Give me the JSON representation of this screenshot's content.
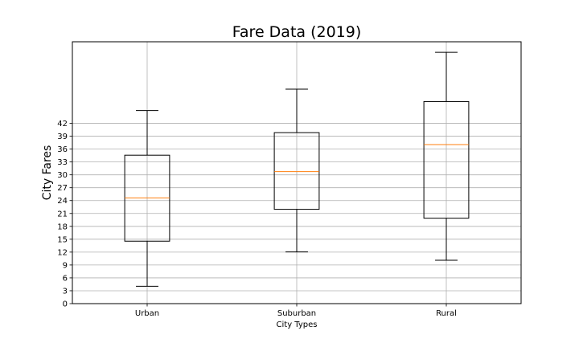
{
  "chart_data": {
    "type": "box",
    "title": "Fare Data (2019)",
    "xlabel": "City Types",
    "ylabel": "City Fares",
    "categories": [
      "Urban",
      "Suburban",
      "Rural"
    ],
    "boxes": [
      {
        "name": "Urban",
        "whisker_low": 4.05,
        "q1": 14.55,
        "median": 24.64,
        "q3": 34.58,
        "whisker_high": 44.97
      },
      {
        "name": "Suburban",
        "whisker_low": 12.05,
        "q1": 21.97,
        "median": 30.75,
        "q3": 39.83,
        "whisker_high": 49.96
      },
      {
        "name": "Rural",
        "whisker_low": 10.11,
        "q1": 19.9,
        "median": 37.05,
        "q3": 47.07,
        "whisker_high": 58.55
      }
    ],
    "yticks": [
      0,
      3,
      6,
      9,
      12,
      15,
      18,
      21,
      24,
      27,
      30,
      33,
      36,
      39,
      42
    ],
    "ylim": [
      0,
      61
    ],
    "grid": true,
    "colors": {
      "box": "#000000",
      "median": "#ff7f0e",
      "grid": "#b0b0b0"
    }
  }
}
